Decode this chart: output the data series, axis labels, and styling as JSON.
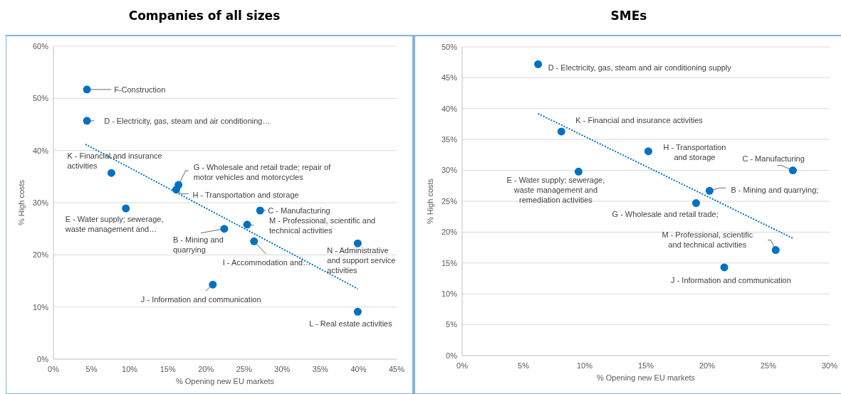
{
  "chart_data": [
    {
      "type": "scatter",
      "title": "Companies of all sizes",
      "xlabel": "%  Opening new EU markets",
      "ylabel": "% High costs",
      "xlim": [
        0,
        45
      ],
      "ylim": [
        0,
        60
      ],
      "xticks": [
        {
          "value": 0,
          "label": "0%"
        },
        {
          "value": 5,
          "label": "5%"
        },
        {
          "value": 10,
          "label": "10%"
        },
        {
          "value": 15,
          "label": "15%"
        },
        {
          "value": 20,
          "label": "20%"
        },
        {
          "value": 25,
          "label": "25%"
        },
        {
          "value": 30,
          "label": "30%"
        },
        {
          "value": 35,
          "label": "35%"
        },
        {
          "value": 40,
          "label": "40%"
        },
        {
          "value": 45,
          "label": "45%"
        }
      ],
      "yticks": [
        {
          "value": 0,
          "label": "0%"
        },
        {
          "value": 10,
          "label": "10%"
        },
        {
          "value": 20,
          "label": "20%"
        },
        {
          "value": 30,
          "label": "30%"
        },
        {
          "value": 40,
          "label": "40%"
        },
        {
          "value": 50,
          "label": "50%"
        },
        {
          "value": 60,
          "label": "60%"
        }
      ],
      "grid": "y",
      "series": [
        {
          "type": "scatter",
          "marker": "circle",
          "color": "#0070c0",
          "x": [
            4.4,
            4.4,
            7.6,
            9.5,
            16.4,
            16.1,
            27.1,
            25.4,
            22.4,
            26.3,
            39.9,
            20.9,
            39.9
          ],
          "values": [
            51.7,
            45.7,
            35.7,
            28.9,
            33.4,
            32.5,
            28.5,
            25.8,
            25.0,
            22.6,
            22.2,
            14.3,
            9.1
          ]
        },
        {
          "type": "line",
          "color": "#0070c0",
          "line_style": "dotted",
          "x": [
            4.2,
            39.9
          ],
          "values": [
            41.2,
            13.5
          ]
        }
      ],
      "annotations": [
        {
          "text": "F-Construction",
          "x": 4.4,
          "y": 51.7
        },
        {
          "text": "D - Electricity, gas, steam and air conditioning…",
          "x": 4.4,
          "y": 45.7
        },
        {
          "text": "K - Financial and insurance activities",
          "x": 7.6,
          "y": 35.7
        },
        {
          "text": "E - Water supply; sewerage, waste management and…",
          "x": 9.5,
          "y": 28.9
        },
        {
          "text": "G - Wholesale and retail trade; repair of motor vehicles and motorcycles",
          "x": 16.4,
          "y": 33.4
        },
        {
          "text": "H - Transportation and storage",
          "x": 16.1,
          "y": 32.5
        },
        {
          "text": "C - Manufacturing",
          "x": 27.1,
          "y": 28.5
        },
        {
          "text": "M - Professional, scientific and technical activities",
          "x": 25.4,
          "y": 25.8
        },
        {
          "text": "B - Mining and quarrying",
          "x": 22.4,
          "y": 25.0
        },
        {
          "text": "I - Accommodation and…",
          "x": 26.3,
          "y": 22.6
        },
        {
          "text": "N - Administrative and support service activities",
          "x": 39.9,
          "y": 22.2
        },
        {
          "text": "J - Information and communication",
          "x": 20.9,
          "y": 14.3
        },
        {
          "text": "L - Real estate activities",
          "x": 39.9,
          "y": 9.1
        }
      ]
    },
    {
      "type": "scatter",
      "title": "SMEs",
      "xlabel": "% Opening new EU markets",
      "ylabel": "% High costs",
      "xlim": [
        0,
        30
      ],
      "ylim": [
        0,
        50
      ],
      "xticks": [
        {
          "value": 0,
          "label": "0%"
        },
        {
          "value": 5,
          "label": "5%"
        },
        {
          "value": 10,
          "label": "10%"
        },
        {
          "value": 15,
          "label": "15%"
        },
        {
          "value": 20,
          "label": "20%"
        },
        {
          "value": 25,
          "label": "25%"
        },
        {
          "value": 30,
          "label": "30%"
        }
      ],
      "yticks": [
        {
          "value": 0,
          "label": "0%"
        },
        {
          "value": 5,
          "label": "5%"
        },
        {
          "value": 10,
          "label": "10%"
        },
        {
          "value": 15,
          "label": "15%"
        },
        {
          "value": 20,
          "label": "20%"
        },
        {
          "value": 25,
          "label": "25%"
        },
        {
          "value": 30,
          "label": "30%"
        },
        {
          "value": 35,
          "label": "35%"
        },
        {
          "value": 40,
          "label": "40%"
        },
        {
          "value": 45,
          "label": "45%"
        },
        {
          "value": 50,
          "label": "50%"
        }
      ],
      "grid": "y",
      "series": [
        {
          "type": "scatter",
          "marker": "circle",
          "color": "#0070c0",
          "x": [
            6.2,
            8.1,
            9.5,
            15.2,
            27.0,
            20.2,
            19.1,
            25.6,
            21.4
          ],
          "values": [
            47.2,
            36.3,
            29.8,
            33.1,
            30.0,
            26.7,
            24.7,
            17.1,
            14.3
          ]
        },
        {
          "type": "line",
          "color": "#0070c0",
          "line_style": "dotted",
          "x": [
            6.2,
            27.0
          ],
          "values": [
            39.2,
            19.0
          ]
        }
      ],
      "annotations": [
        {
          "text": "D - Electricity, gas, steam and air conditioning  supply",
          "x": 6.2,
          "y": 47.2
        },
        {
          "text": "K - Financial and insurance activities",
          "x": 8.1,
          "y": 36.3
        },
        {
          "text": "E - Water supply; sewerage, waste management and remediation  activities",
          "x": 9.5,
          "y": 29.8
        },
        {
          "text": "H - Transportation and storage",
          "x": 15.2,
          "y": 33.1
        },
        {
          "text": "C - Manufacturing",
          "x": 27.0,
          "y": 30.0
        },
        {
          "text": "B - Mining and quarrying;",
          "x": 20.2,
          "y": 26.7
        },
        {
          "text": "G - Wholesale and retail trade;",
          "x": 19.1,
          "y": 24.7
        },
        {
          "text": "M - Professional, scientific and technical activities",
          "x": 25.6,
          "y": 17.1
        },
        {
          "text": "J - Information and communication",
          "x": 21.4,
          "y": 14.3
        }
      ]
    }
  ]
}
